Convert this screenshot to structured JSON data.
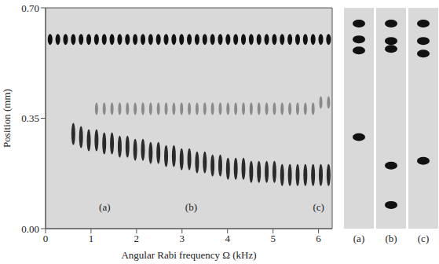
{
  "chart_data": [
    {
      "type": "scatter",
      "xlabel": "Angular Rabi frequency Ω (kHz)",
      "ylabel": "Position (mm)",
      "xlim": [
        0,
        6.3
      ],
      "ylim": [
        0,
        0.7
      ],
      "xticks": [
        0,
        1,
        2,
        3,
        4,
        5,
        6
      ],
      "yticks": [
        {
          "value": 0,
          "label": "0.00"
        },
        0.35,
        {
          "value": 0.7,
          "label": "0.70"
        }
      ],
      "grid": false,
      "series": [
        {
          "color": "#111111",
          "marker": "ellipse",
          "x": [
            0.1,
            0.27,
            0.44,
            0.61,
            0.78,
            0.95,
            1.12,
            1.29,
            1.46,
            1.63,
            1.8,
            1.97,
            2.14,
            2.31,
            2.48,
            2.65,
            2.82,
            2.99,
            3.16,
            3.33,
            3.5,
            3.67,
            3.84,
            4.01,
            4.18,
            4.35,
            4.52,
            4.69,
            4.86,
            5.03,
            5.2,
            5.37,
            5.54,
            5.71,
            5.88,
            6.05,
            6.22
          ],
          "values": [
            0.6,
            0.6,
            0.6,
            0.6,
            0.6,
            0.6,
            0.6,
            0.6,
            0.6,
            0.6,
            0.6,
            0.6,
            0.6,
            0.6,
            0.6,
            0.6,
            0.6,
            0.6,
            0.6,
            0.6,
            0.6,
            0.6,
            0.6,
            0.6,
            0.6,
            0.6,
            0.6,
            0.6,
            0.6,
            0.6,
            0.6,
            0.6,
            0.6,
            0.6,
            0.6,
            0.6,
            0.6
          ]
        },
        {
          "color": "#2a2a2a",
          "marker": "streak",
          "x": [
            0.61,
            0.78,
            0.95,
            1.12,
            1.29,
            1.46,
            1.63,
            1.8,
            1.97,
            2.14,
            2.31,
            2.48,
            2.65,
            2.82,
            2.99,
            3.16,
            3.33,
            3.5,
            3.67,
            3.84,
            4.01,
            4.18,
            4.35,
            4.52,
            4.69,
            4.86,
            5.03,
            5.2,
            5.37,
            5.54,
            5.71,
            5.88,
            6.05,
            6.22
          ],
          "values": [
            0.3,
            0.29,
            0.28,
            0.28,
            0.27,
            0.27,
            0.26,
            0.26,
            0.25,
            0.25,
            0.24,
            0.24,
            0.23,
            0.23,
            0.22,
            0.22,
            0.21,
            0.21,
            0.2,
            0.2,
            0.19,
            0.19,
            0.19,
            0.18,
            0.18,
            0.18,
            0.18,
            0.17,
            0.17,
            0.17,
            0.17,
            0.17,
            0.17,
            0.17
          ]
        },
        {
          "color": "#8a8a8a",
          "marker": "faint",
          "x": [
            1.12,
            1.29,
            1.46,
            1.63,
            1.8,
            1.97,
            2.14,
            2.31,
            2.48,
            2.65,
            2.82,
            2.99,
            3.16,
            3.33,
            3.5,
            3.67,
            3.84,
            4.01,
            4.18,
            4.35,
            4.52,
            4.69,
            4.86,
            5.03,
            5.2,
            5.37,
            5.54,
            5.71,
            5.88,
            6.05,
            6.22
          ],
          "values": [
            0.38,
            0.38,
            0.38,
            0.38,
            0.38,
            0.38,
            0.38,
            0.38,
            0.38,
            0.38,
            0.38,
            0.38,
            0.38,
            0.38,
            0.38,
            0.38,
            0.38,
            0.38,
            0.38,
            0.38,
            0.38,
            0.38,
            0.38,
            0.38,
            0.38,
            0.38,
            0.38,
            0.38,
            0.38,
            0.4,
            0.4
          ]
        }
      ],
      "annotations": [
        {
          "text": "(a)",
          "x": 1.3,
          "y": 0.07
        },
        {
          "text": "(b)",
          "x": 3.2,
          "y": 0.07
        },
        {
          "text": "(c)",
          "x": 6.0,
          "y": 0.07
        }
      ]
    },
    {
      "type": "scatter",
      "label": "(a)",
      "ylim": [
        0,
        0.7
      ],
      "tick_labels": "x",
      "color": "#111111",
      "values": [
        0.65,
        0.6,
        0.565,
        0.29
      ]
    },
    {
      "type": "scatter",
      "label": "(b)",
      "ylim": [
        0,
        0.7
      ],
      "tick_labels": "x",
      "color": "#111111",
      "values": [
        0.65,
        0.595,
        0.57,
        0.2,
        0.075
      ]
    },
    {
      "type": "scatter",
      "label": "(c)",
      "ylim": [
        0,
        0.7
      ],
      "tick_labels": "x",
      "color": "#111111",
      "values": [
        0.65,
        0.595,
        0.555,
        0.215
      ]
    }
  ]
}
